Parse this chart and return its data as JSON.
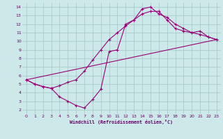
{
  "bg_color": "#cce8e8",
  "grid_color": "#aacccc",
  "line_color": "#990077",
  "xlim": [
    -0.5,
    23.5
  ],
  "ylim": [
    1.5,
    14.5
  ],
  "xticks": [
    0,
    1,
    2,
    3,
    4,
    5,
    6,
    7,
    8,
    9,
    10,
    11,
    12,
    13,
    14,
    15,
    16,
    17,
    18,
    19,
    20,
    21,
    22,
    23
  ],
  "yticks": [
    2,
    3,
    4,
    5,
    6,
    7,
    8,
    9,
    10,
    11,
    12,
    13,
    14
  ],
  "xlabel": "Windchill (Refroidissement éolien,°C)",
  "line1_x": [
    0,
    1,
    2,
    3,
    4,
    5,
    6,
    7,
    8,
    9,
    10,
    11,
    12,
    13,
    14,
    15,
    16,
    17,
    18,
    19,
    20,
    21,
    22,
    23
  ],
  "line1_y": [
    5.5,
    5.0,
    4.7,
    4.5,
    3.5,
    3.0,
    2.5,
    2.2,
    3.2,
    4.4,
    8.8,
    9.0,
    12.0,
    12.5,
    13.8,
    14.0,
    13.2,
    12.8,
    12.0,
    11.5,
    11.0,
    11.2,
    10.5,
    10.2
  ],
  "line2_x": [
    0,
    1,
    2,
    3,
    4,
    5,
    6,
    7,
    8,
    9,
    10,
    11,
    12,
    13,
    14,
    15,
    16,
    17,
    18,
    19,
    20,
    21,
    22,
    23
  ],
  "line2_y": [
    5.5,
    5.0,
    4.7,
    4.5,
    4.8,
    5.2,
    5.5,
    6.5,
    7.8,
    9.0,
    10.2,
    11.0,
    11.8,
    12.5,
    13.2,
    13.5,
    13.5,
    12.5,
    11.5,
    11.2,
    11.0,
    10.8,
    10.5,
    10.2
  ],
  "line3_x": [
    0,
    23
  ],
  "line3_y": [
    5.5,
    10.2
  ]
}
